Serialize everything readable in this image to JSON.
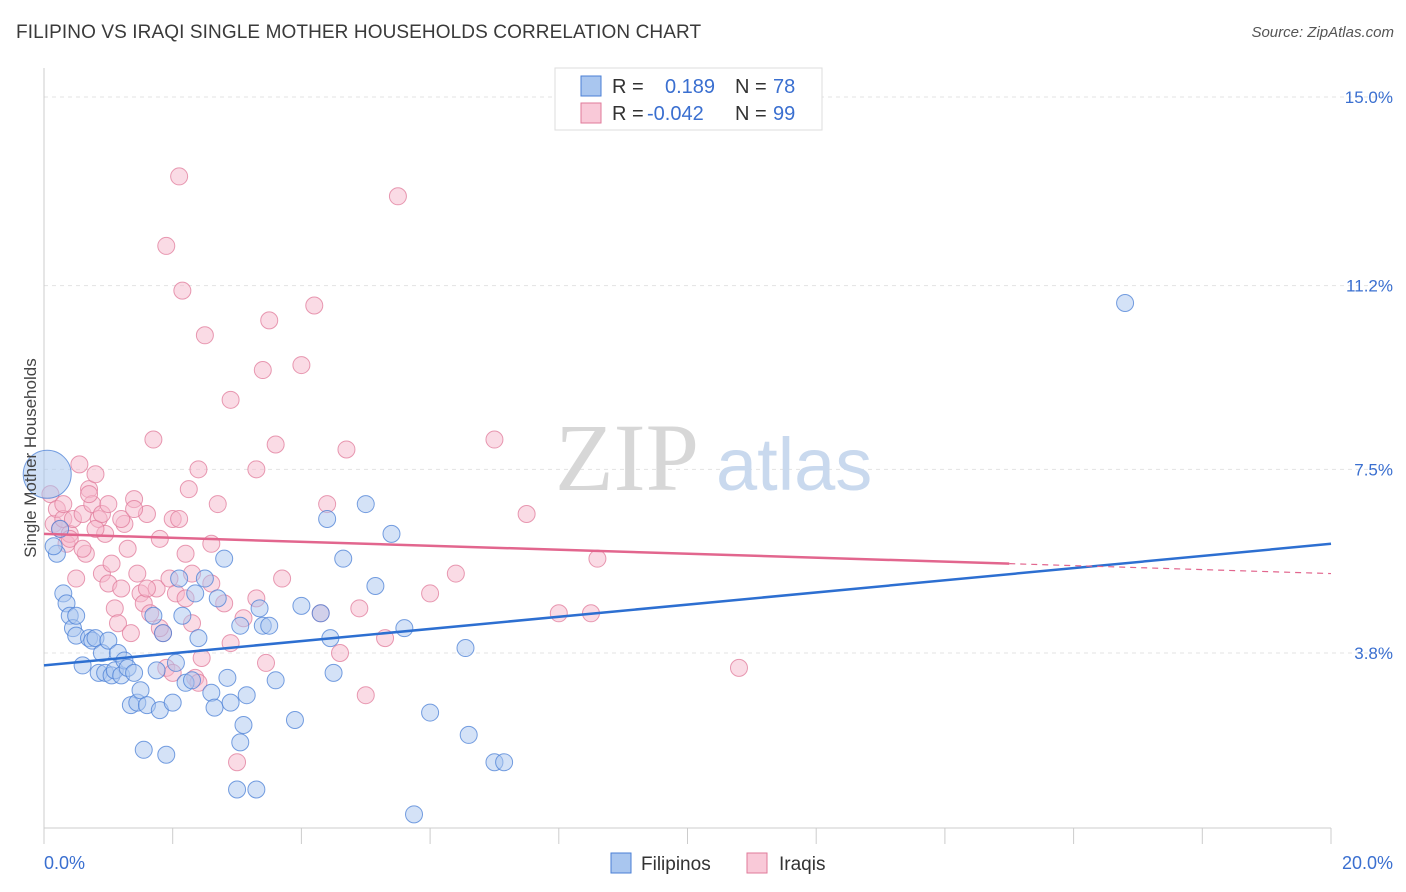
{
  "title": "FILIPINO VS IRAQI SINGLE MOTHER HOUSEHOLDS CORRELATION CHART",
  "source": "Source: ZipAtlas.com",
  "watermark": {
    "zip": "ZIP",
    "atlas": "atlas"
  },
  "stats_legend": [
    {
      "r_label": "R =",
      "r_value": "0.189",
      "n_label": "N =",
      "n_value": "78",
      "color": "#4a7fd6"
    },
    {
      "r_label": "R =",
      "r_value": "-0.042",
      "n_label": "N =",
      "n_value": "99",
      "color": "#e07a9a"
    }
  ],
  "chart_data": {
    "type": "scatter",
    "xlabel": "",
    "ylabel": "Single Mother Households",
    "xlim": [
      0,
      20
    ],
    "ylim": [
      0,
      15.5
    ],
    "x_tick_labels": [
      "0.0%",
      "20.0%"
    ],
    "y_ticks": [
      {
        "value": 3.8,
        "label": "3.8%"
      },
      {
        "value": 7.5,
        "label": "7.5%"
      },
      {
        "value": 11.2,
        "label": "11.2%"
      },
      {
        "value": 15.0,
        "label": "15.0%"
      }
    ],
    "grid": true,
    "legend": "bottom-center",
    "series": [
      {
        "name": "Filipinos",
        "color": "#4a7fd6",
        "fill": "#a9c6ef",
        "trend": {
          "x0": 0,
          "y0": 3.55,
          "x1": 20,
          "y1": 6.0
        },
        "points": [
          [
            0.05,
            7.4
          ],
          [
            0.2,
            5.8
          ],
          [
            0.3,
            5.0
          ],
          [
            0.35,
            4.8
          ],
          [
            0.4,
            4.55
          ],
          [
            0.45,
            4.3
          ],
          [
            0.5,
            4.55
          ],
          [
            0.5,
            4.15
          ],
          [
            0.6,
            3.55
          ],
          [
            0.7,
            4.1
          ],
          [
            0.75,
            4.05
          ],
          [
            0.8,
            4.1
          ],
          [
            0.85,
            3.4
          ],
          [
            0.9,
            3.8
          ],
          [
            0.95,
            3.4
          ],
          [
            1.0,
            4.05
          ],
          [
            1.05,
            3.35
          ],
          [
            1.1,
            3.45
          ],
          [
            1.15,
            3.8
          ],
          [
            1.2,
            3.35
          ],
          [
            1.25,
            3.65
          ],
          [
            1.3,
            3.5
          ],
          [
            1.35,
            2.75
          ],
          [
            1.4,
            3.4
          ],
          [
            1.45,
            2.8
          ],
          [
            1.5,
            3.05
          ],
          [
            1.55,
            1.85
          ],
          [
            1.6,
            2.75
          ],
          [
            1.7,
            4.55
          ],
          [
            1.75,
            3.45
          ],
          [
            1.8,
            2.65
          ],
          [
            1.85,
            4.2
          ],
          [
            1.9,
            1.75
          ],
          [
            2.0,
            2.8
          ],
          [
            2.05,
            3.6
          ],
          [
            2.1,
            5.3
          ],
          [
            2.15,
            4.55
          ],
          [
            2.2,
            3.2
          ],
          [
            2.3,
            3.25
          ],
          [
            2.35,
            5.0
          ],
          [
            2.4,
            4.1
          ],
          [
            2.5,
            5.3
          ],
          [
            2.6,
            3.0
          ],
          [
            2.65,
            2.7
          ],
          [
            2.7,
            4.9
          ],
          [
            2.8,
            5.7
          ],
          [
            2.85,
            3.3
          ],
          [
            2.9,
            2.8
          ],
          [
            3.0,
            1.05
          ],
          [
            3.05,
            2.0
          ],
          [
            3.1,
            2.35
          ],
          [
            3.15,
            2.95
          ],
          [
            3.3,
            1.05
          ],
          [
            3.35,
            4.7
          ],
          [
            3.4,
            4.35
          ],
          [
            3.5,
            4.35
          ],
          [
            3.6,
            3.25
          ],
          [
            3.9,
            2.45
          ],
          [
            4.0,
            4.75
          ],
          [
            4.3,
            4.6
          ],
          [
            4.4,
            6.5
          ],
          [
            4.45,
            4.1
          ],
          [
            4.5,
            3.4
          ],
          [
            4.65,
            5.7
          ],
          [
            5.0,
            6.8
          ],
          [
            5.15,
            5.15
          ],
          [
            5.4,
            6.2
          ],
          [
            5.6,
            4.3
          ],
          [
            5.75,
            0.55
          ],
          [
            6.0,
            2.6
          ],
          [
            6.55,
            3.9
          ],
          [
            6.6,
            2.15
          ],
          [
            7.0,
            1.6
          ],
          [
            7.15,
            1.6
          ],
          [
            16.8,
            10.85
          ],
          [
            0.15,
            5.95
          ],
          [
            0.25,
            6.3
          ],
          [
            3.05,
            4.35
          ]
        ]
      },
      {
        "name": "Iraqis",
        "color": "#e07a9a",
        "fill": "#f5b8cb",
        "trend": {
          "x0": 0,
          "y0": 6.2,
          "x1": 15,
          "y1": 5.6,
          "dash_to_x": 20,
          "dash_to_y": 5.4
        },
        "points": [
          [
            0.1,
            7.0
          ],
          [
            0.15,
            6.4
          ],
          [
            0.2,
            6.7
          ],
          [
            0.25,
            6.3
          ],
          [
            0.3,
            6.5
          ],
          [
            0.35,
            6.0
          ],
          [
            0.4,
            6.2
          ],
          [
            0.45,
            6.5
          ],
          [
            0.5,
            5.3
          ],
          [
            0.55,
            7.6
          ],
          [
            0.6,
            6.6
          ],
          [
            0.65,
            5.8
          ],
          [
            0.7,
            7.1
          ],
          [
            0.75,
            6.8
          ],
          [
            0.8,
            7.4
          ],
          [
            0.85,
            6.5
          ],
          [
            0.9,
            5.4
          ],
          [
            0.95,
            6.2
          ],
          [
            1.0,
            5.2
          ],
          [
            1.05,
            5.6
          ],
          [
            1.1,
            4.7
          ],
          [
            1.15,
            4.4
          ],
          [
            1.2,
            5.1
          ],
          [
            1.25,
            6.4
          ],
          [
            1.3,
            5.9
          ],
          [
            1.35,
            4.2
          ],
          [
            1.4,
            6.9
          ],
          [
            1.45,
            5.4
          ],
          [
            1.5,
            5.0
          ],
          [
            1.55,
            4.8
          ],
          [
            1.6,
            6.6
          ],
          [
            1.65,
            4.6
          ],
          [
            1.7,
            8.1
          ],
          [
            1.75,
            5.1
          ],
          [
            1.8,
            6.1
          ],
          [
            1.85,
            4.2
          ],
          [
            1.9,
            3.5
          ],
          [
            1.95,
            5.3
          ],
          [
            2.0,
            6.5
          ],
          [
            2.05,
            5.0
          ],
          [
            2.1,
            13.4
          ],
          [
            2.15,
            11.1
          ],
          [
            2.2,
            4.9
          ],
          [
            2.25,
            7.1
          ],
          [
            2.3,
            5.4
          ],
          [
            2.35,
            3.3
          ],
          [
            2.4,
            7.5
          ],
          [
            2.45,
            3.7
          ],
          [
            2.5,
            10.2
          ],
          [
            2.6,
            5.2
          ],
          [
            2.7,
            6.8
          ],
          [
            2.8,
            4.8
          ],
          [
            2.9,
            8.9
          ],
          [
            3.0,
            1.6
          ],
          [
            3.3,
            7.5
          ],
          [
            3.4,
            9.5
          ],
          [
            3.45,
            3.6
          ],
          [
            3.5,
            10.5
          ],
          [
            3.6,
            8.0
          ],
          [
            3.7,
            5.3
          ],
          [
            4.0,
            9.6
          ],
          [
            4.2,
            10.8
          ],
          [
            4.3,
            4.6
          ],
          [
            4.4,
            6.8
          ],
          [
            4.6,
            3.8
          ],
          [
            4.7,
            7.9
          ],
          [
            4.9,
            4.7
          ],
          [
            5.0,
            2.95
          ],
          [
            5.3,
            4.1
          ],
          [
            5.5,
            13.0
          ],
          [
            6.0,
            5.0
          ],
          [
            6.4,
            5.4
          ],
          [
            7.0,
            8.1
          ],
          [
            7.5,
            6.6
          ],
          [
            8.0,
            4.6
          ],
          [
            8.5,
            4.6
          ],
          [
            8.6,
            5.7
          ],
          [
            10.8,
            3.5
          ],
          [
            0.3,
            6.8
          ],
          [
            0.4,
            6.1
          ],
          [
            0.6,
            5.9
          ],
          [
            0.7,
            7.0
          ],
          [
            0.8,
            6.3
          ],
          [
            0.9,
            6.6
          ],
          [
            1.0,
            6.8
          ],
          [
            1.2,
            6.5
          ],
          [
            1.4,
            6.7
          ],
          [
            1.6,
            5.1
          ],
          [
            1.8,
            4.3
          ],
          [
            1.9,
            12.0
          ],
          [
            2.0,
            3.4
          ],
          [
            2.1,
            6.5
          ],
          [
            2.2,
            5.8
          ],
          [
            2.3,
            4.4
          ],
          [
            2.4,
            3.2
          ],
          [
            2.6,
            6.0
          ],
          [
            2.9,
            4.0
          ],
          [
            3.1,
            4.5
          ],
          [
            3.3,
            4.9
          ]
        ]
      }
    ]
  }
}
